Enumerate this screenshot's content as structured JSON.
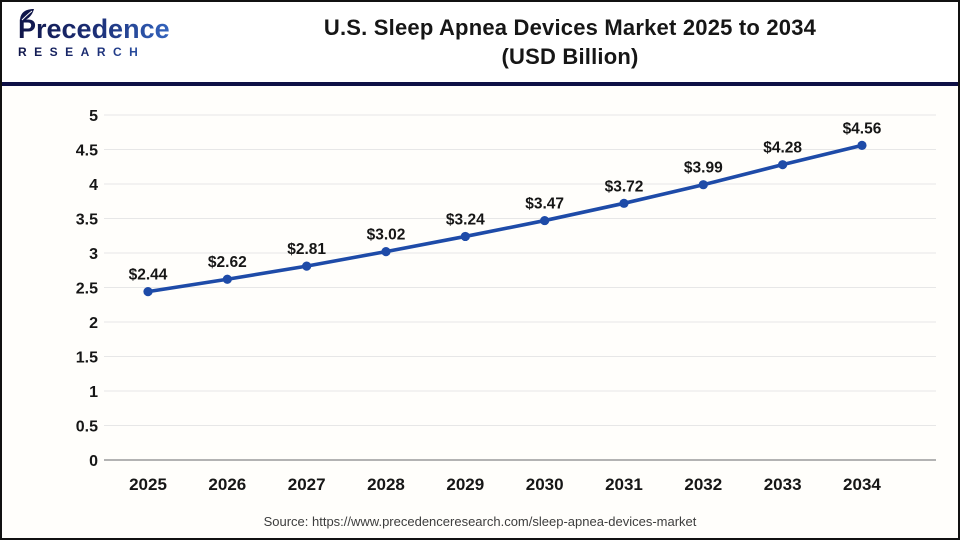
{
  "header": {
    "logo_line1": "Precedence",
    "logo_line2": "RESEARCH",
    "title_line1": "U.S. Sleep Apnea Devices Market 2025 to 2034",
    "title_line2": "(USD Billion)"
  },
  "chart_data": {
    "type": "line",
    "title": "U.S. Sleep Apnea Devices Market 2025 to 2034 (USD Billion)",
    "categories": [
      "2025",
      "2026",
      "2027",
      "2028",
      "2029",
      "2030",
      "2031",
      "2032",
      "2033",
      "2034"
    ],
    "values": [
      2.44,
      2.62,
      2.81,
      3.02,
      3.24,
      3.47,
      3.72,
      3.99,
      4.28,
      4.56
    ],
    "point_labels": [
      "$2.44",
      "$2.62",
      "$2.81",
      "$3.02",
      "$3.24",
      "$3.47",
      "$3.72",
      "$3.99",
      "$4.28",
      "$4.56"
    ],
    "xlabel": "",
    "ylabel": "",
    "ylim": [
      0,
      5
    ],
    "y_ticks": [
      0,
      0.5,
      1,
      1.5,
      2,
      2.5,
      3,
      3.5,
      4,
      4.5,
      5
    ],
    "y_tick_labels": [
      "0",
      "0.5",
      "1",
      "1.5",
      "2",
      "2.5",
      "3",
      "3.5",
      "4",
      "4.5",
      "5"
    ],
    "grid": true,
    "legend_position": "none",
    "line_color": "#1e4ba8",
    "marker": "circle"
  },
  "footer": {
    "source": "Source: https://www.precedenceresearch.com/sleep-apnea-devices-market"
  },
  "colors": {
    "header_rule_navy": "#0e1045",
    "line_blue": "#1e4ba8",
    "gridline": "#e7e7e7",
    "axis_line": "#b3b3b3",
    "label_text": "#161616",
    "source_text": "#3d3d3d"
  }
}
